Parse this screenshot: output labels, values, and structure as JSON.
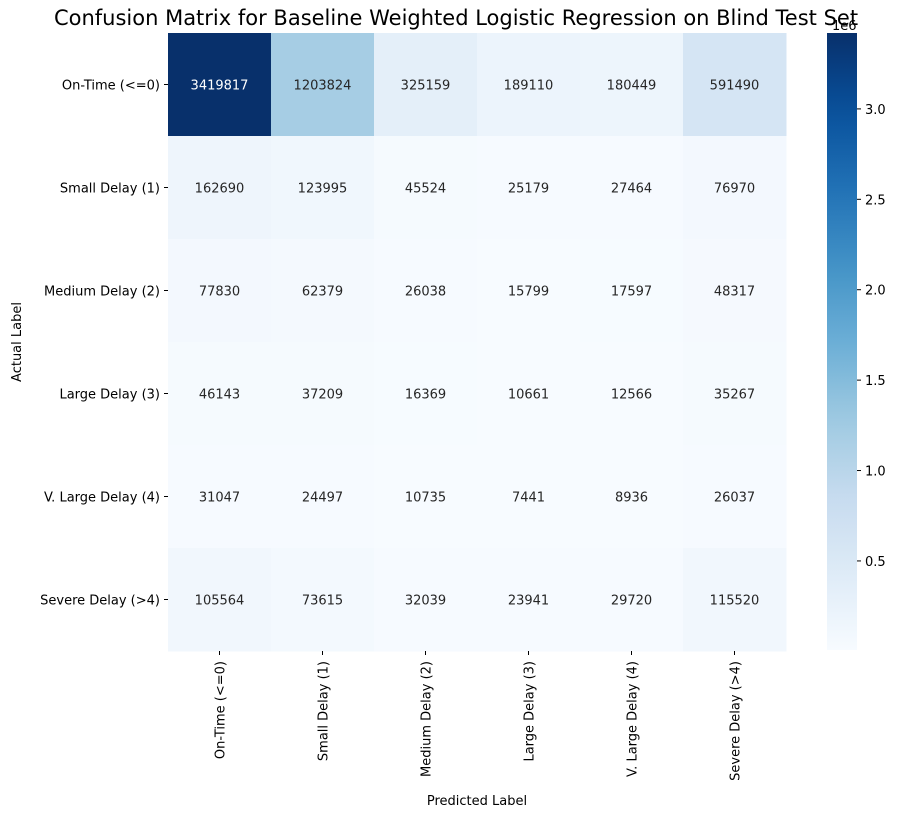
{
  "chart_data": {
    "type": "heatmap",
    "title": "Confusion Matrix for Baseline Weighted Logistic Regression on Blind Test Set",
    "xlabel": "Predicted Label",
    "ylabel": "Actual Label",
    "x_categories": [
      "On-Time (<=0)",
      "Small Delay (1)",
      "Medium Delay (2)",
      "Large Delay (3)",
      "V. Large Delay (4)",
      "Severe Delay (>4)"
    ],
    "y_categories": [
      "On-Time (<=0)",
      "Small Delay (1)",
      "Medium Delay (2)",
      "Large Delay (3)",
      "V. Large Delay (4)",
      "Severe Delay (>4)"
    ],
    "values": [
      [
        3419817,
        1203824,
        325159,
        189110,
        180449,
        591490
      ],
      [
        162690,
        123995,
        45524,
        25179,
        27464,
        76970
      ],
      [
        77830,
        62379,
        26038,
        15799,
        17597,
        48317
      ],
      [
        46143,
        37209,
        16369,
        10661,
        12566,
        35267
      ],
      [
        31047,
        24497,
        10735,
        7441,
        8936,
        26037
      ],
      [
        105564,
        73615,
        32039,
        23941,
        29720,
        115520
      ]
    ],
    "colormap": "Blues",
    "colorbar": {
      "min": 7441,
      "max": 3419817,
      "ticks": [
        0.5,
        1.0,
        1.5,
        2.0,
        2.5,
        3.0
      ],
      "tick_labels": [
        "0.5",
        "1.0",
        "1.5",
        "2.0",
        "2.5",
        "3.0"
      ],
      "scale_factor_label": "1e6",
      "tick_multiplier": 1000000
    },
    "annotations": true,
    "grid": false,
    "legend": "colorbar-right"
  }
}
